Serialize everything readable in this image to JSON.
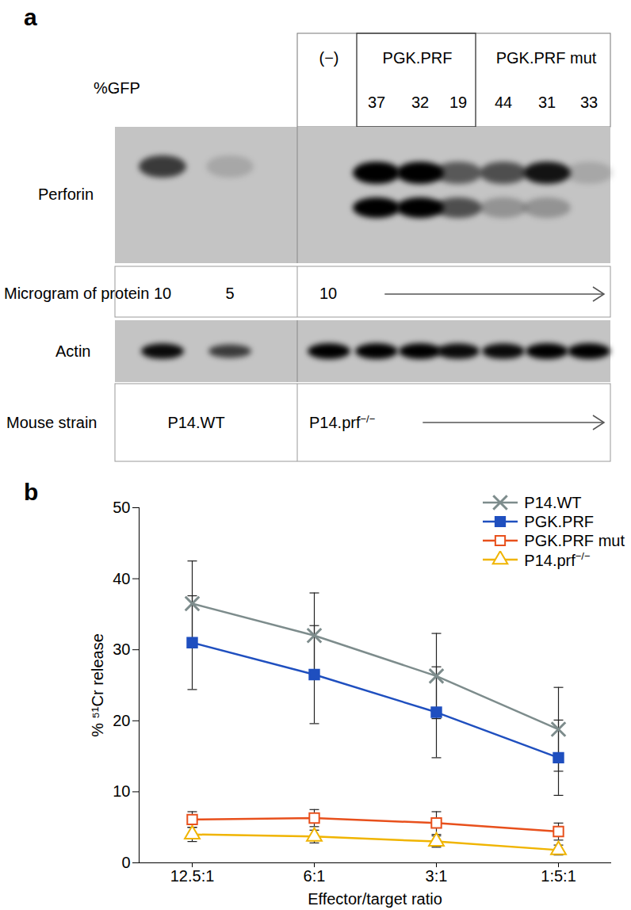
{
  "figure_a": {
    "label": "a",
    "groups": [
      {
        "text": "(−)",
        "lanes": [
          2
        ]
      },
      {
        "text": "PGK.PRF",
        "lanes": [
          3,
          4,
          5
        ]
      },
      {
        "text": "PGK.PRF mut",
        "lanes": [
          6,
          7,
          8
        ]
      }
    ],
    "gfp": {
      "label": "%GFP",
      "values": [
        null,
        null,
        null,
        37,
        32,
        19,
        44,
        31,
        33
      ]
    },
    "perforin": {
      "label": "Perforin",
      "upper_band": [
        0.7,
        0.15,
        0,
        1,
        1,
        0.55,
        0.6,
        0.9,
        0.15
      ],
      "lower_band": [
        0,
        0,
        0,
        1,
        1,
        0.6,
        0.25,
        0.25,
        0
      ]
    },
    "protein": {
      "label": "Microgram of protein",
      "entries": [
        {
          "lane": 0,
          "value": 10
        },
        {
          "lane": 1,
          "value": 5
        },
        {
          "lane": 2,
          "value": 10
        }
      ]
    },
    "actin": {
      "label": "Actin",
      "band": [
        0.95,
        0.7,
        1,
        1,
        1,
        0.95,
        0.95,
        1,
        1
      ]
    },
    "strain": {
      "label": "Mouse strain",
      "entries": [
        {
          "lane": 0,
          "text": "P14.WT"
        },
        {
          "lane": 2,
          "text": "P14.prf−/−"
        }
      ]
    }
  },
  "chart_data": {
    "type": "line",
    "annotations": [
      "b"
    ],
    "x_label": "Effector/target ratio",
    "y_label": "% ⁵¹Cr release",
    "categories": [
      "12.5:1",
      "6:1",
      "3:1",
      "1:5:1"
    ],
    "ylim": [
      0,
      50
    ],
    "yticks": [
      0,
      10,
      20,
      30,
      40,
      50
    ],
    "legend": "upper right",
    "series": [
      {
        "name": "P14.prf−/−",
        "color": "#f0b400",
        "marker": "triangle-open",
        "values": [
          4,
          3.7,
          3,
          1.8
        ],
        "errors": [
          1,
          0.9,
          0.8,
          0.7
        ]
      },
      {
        "name": "PGK.PRF mut",
        "color": "#e8501c",
        "marker": "square-open",
        "values": [
          6.1,
          6.3,
          5.6,
          4.4
        ],
        "errors": [
          1.1,
          1.2,
          1.6,
          1.2
        ]
      },
      {
        "name": "PGK.PRF",
        "color": "#1f4fbf",
        "marker": "square",
        "values": [
          31,
          26.5,
          21.2,
          14.8
        ],
        "errors": [
          6.6,
          6.9,
          6.4,
          5.3
        ]
      },
      {
        "name": "P14.WT",
        "color": "#7d8c8c",
        "marker": "times",
        "values": [
          36.5,
          32,
          26.3,
          18.8
        ],
        "errors": [
          6,
          6,
          6,
          5.9
        ]
      }
    ]
  }
}
